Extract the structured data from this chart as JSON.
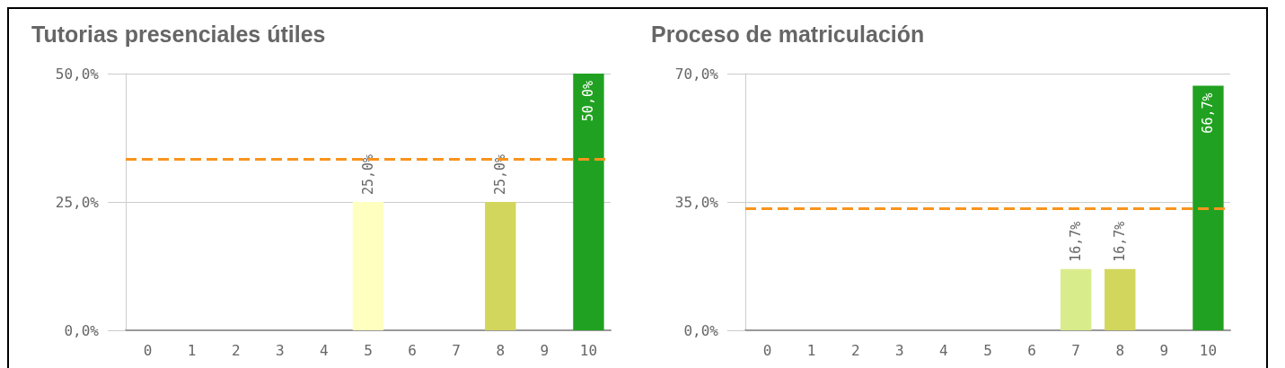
{
  "chart_data": [
    {
      "type": "bar",
      "title": "Tutorias presenciales útiles",
      "categories": [
        "0",
        "1",
        "2",
        "3",
        "4",
        "5",
        "6",
        "7",
        "8",
        "9",
        "10"
      ],
      "values": [
        0,
        0,
        0,
        0,
        0,
        25,
        0,
        0,
        25,
        0,
        50
      ],
      "colors": [
        "#ffffc0",
        "#ffffc0",
        "#ffffc0",
        "#ffffc0",
        "#ffffc0",
        "#ffffc0",
        "#ffffc0",
        "#d9ec8c",
        "#d2d65c",
        "#d2d65c",
        "#21a121"
      ],
      "value_labels": [
        null,
        null,
        null,
        null,
        null,
        "25,0%",
        null,
        null,
        "25,0%",
        null,
        "50,0%"
      ],
      "ylim": [
        0,
        50
      ],
      "yticks": [
        {
          "value": 0,
          "label": "0,0%"
        },
        {
          "value": 25,
          "label": "25,0%"
        },
        {
          "value": 50,
          "label": "50,0%"
        }
      ],
      "grid": "y",
      "ref_lines": [
        {
          "axis": "y",
          "value": 33.3,
          "color": "#f7941d",
          "line_style": "dashed"
        }
      ]
    },
    {
      "type": "bar",
      "title": "Proceso de matriculación",
      "categories": [
        "0",
        "1",
        "2",
        "3",
        "4",
        "5",
        "6",
        "7",
        "8",
        "9",
        "10"
      ],
      "values": [
        0,
        0,
        0,
        0,
        0,
        0,
        0,
        16.7,
        16.7,
        0,
        66.7
      ],
      "colors": [
        "#ffffc0",
        "#ffffc0",
        "#ffffc0",
        "#ffffc0",
        "#ffffc0",
        "#ffffc0",
        "#ffffc0",
        "#d9ec8c",
        "#d2d65c",
        "#d2d65c",
        "#21a121"
      ],
      "value_labels": [
        null,
        null,
        null,
        null,
        null,
        null,
        null,
        "16,7%",
        "16,7%",
        null,
        "66,7%"
      ],
      "ylim": [
        0,
        70
      ],
      "yticks": [
        {
          "value": 0,
          "label": "0,0%"
        },
        {
          "value": 35,
          "label": "35,0%"
        },
        {
          "value": 70,
          "label": "70,0%"
        }
      ],
      "grid": "y",
      "ref_lines": [
        {
          "axis": "y",
          "value": 33.3,
          "color": "#f7941d",
          "line_style": "dashed"
        }
      ]
    }
  ]
}
